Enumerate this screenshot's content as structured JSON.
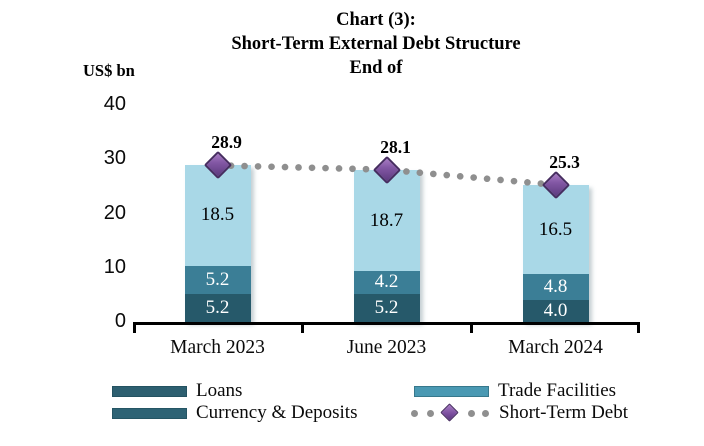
{
  "title": {
    "line1": "Chart (3):",
    "line2": "Short-Term External Debt Structure",
    "line3": "End of"
  },
  "axis_unit_label": "US$ bn",
  "chart_data": {
    "type": "bar",
    "stacked": true,
    "title": "Chart (3): Short-Term External Debt Structure End of",
    "ylabel": "US$ bn",
    "xlabel": "",
    "categories": [
      "March 2023",
      "June 2023",
      "March 2024"
    ],
    "series": [
      {
        "name": "Loans",
        "values": [
          5.2,
          5.2,
          4.0
        ],
        "color": "#26596a",
        "legend_color": "#2d5f70",
        "label_color": "#ffffff"
      },
      {
        "name": "Currency & Deposits",
        "values": [
          5.2,
          4.2,
          4.8
        ],
        "color": "#3b7e96",
        "legend_color": "#2e6375",
        "label_color": "#ffffff"
      },
      {
        "name": "Trade Facilities",
        "values": [
          18.5,
          18.7,
          16.5
        ],
        "color": "#a9d8e7",
        "legend_color": "#4a99b3",
        "label_color": "#000000"
      }
    ],
    "line_series": {
      "name": "Short-Term Debt",
      "values": [
        28.9,
        28.1,
        25.3
      ],
      "marker": "diamond",
      "marker_color": "#7a4d9e",
      "line_color": "#8f8f8f",
      "line_style": "dotted"
    },
    "yticks": [
      0,
      10,
      20,
      30,
      40
    ],
    "ylim": [
      0,
      40
    ],
    "grid": false,
    "legend_position": "bottom",
    "axis_color": "#000000"
  }
}
